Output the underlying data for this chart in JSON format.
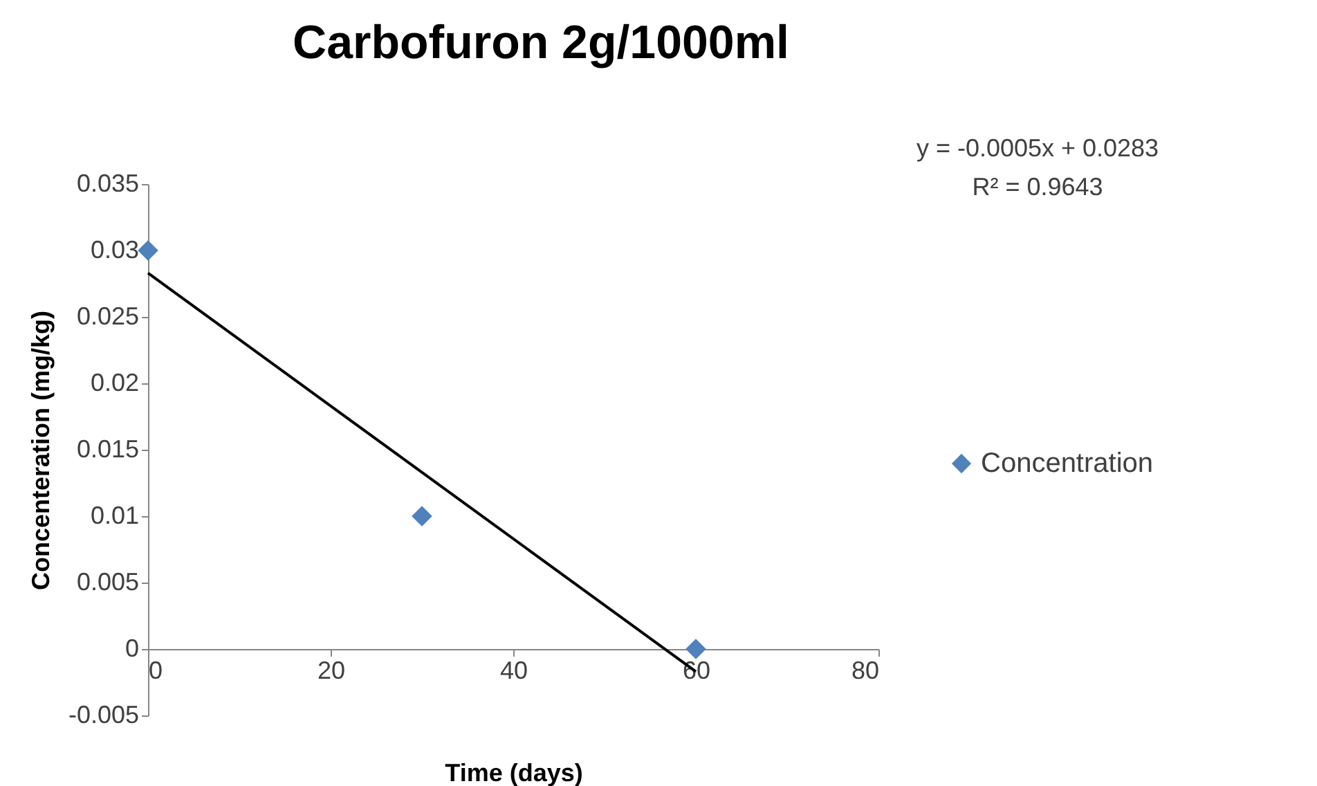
{
  "chart_data": {
    "type": "scatter",
    "title": "Carbofuron 2g/1000ml",
    "xlabel": "Time (days)",
    "ylabel": "Concenteration (mg/kg)",
    "series": [
      {
        "name": "Concentration",
        "color": "#4f81bd",
        "marker": "diamond",
        "x": [
          0,
          30,
          60
        ],
        "values": [
          0.03,
          0.01,
          0
        ]
      },
      {
        "type": "line",
        "color": "#000000",
        "line_style": "solid",
        "x": [
          0,
          60
        ],
        "values": [
          0.0283,
          -0.0017
        ]
      }
    ],
    "annotations": [
      "y = -0.0005x + 0.0283",
      "R² = 0.9643"
    ],
    "xlim": [
      0,
      80
    ],
    "xticks": [
      0,
      20,
      40,
      60,
      80
    ],
    "ylim": [
      -0.005,
      0.035
    ],
    "yticks": [
      -0.005,
      0,
      0.005,
      0.01,
      0.015,
      0.02,
      0.025,
      0.03,
      0.035
    ],
    "grid": false,
    "legend": "right"
  }
}
